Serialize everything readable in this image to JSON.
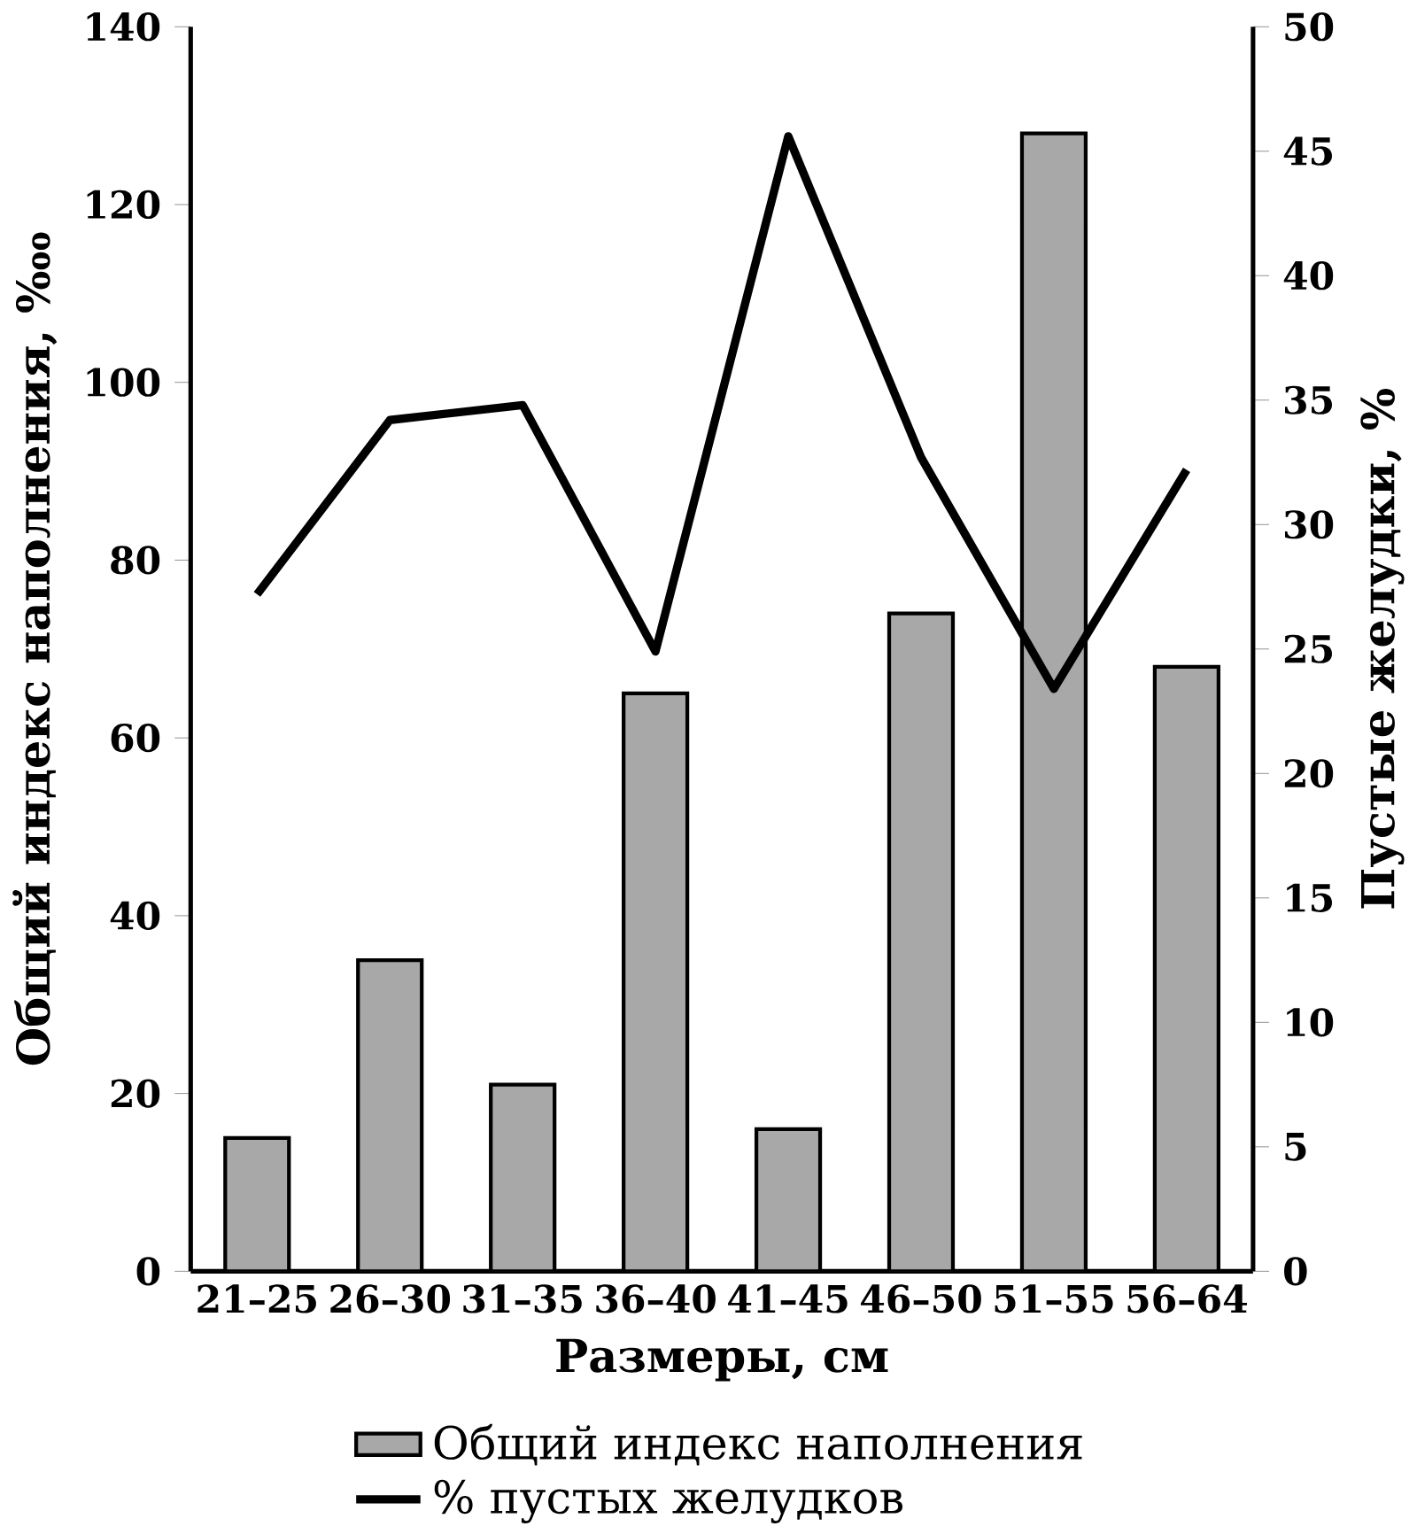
{
  "chart_data": {
    "type": "bar",
    "xlabel": "Размеры, см",
    "ylabel": "Общий индекс наполнения, ‱",
    "y2label": "Пустые желудки, %",
    "categories": [
      "21–25",
      "26–30",
      "31–35",
      "36–40",
      "41–45",
      "46–50",
      "51–55",
      "56–64"
    ],
    "series": [
      {
        "name": "Общий индекс наполнения",
        "color": "#a8a8a8",
        "values": [
          15,
          35,
          21,
          65,
          16,
          74,
          128,
          68
        ]
      },
      {
        "name": "% пустых желудков",
        "type": "line",
        "axis": "y2",
        "color": "#000000",
        "values": [
          27.2,
          34.2,
          34.8,
          24.9,
          45.6,
          32.7,
          23.4,
          32.2
        ]
      }
    ],
    "ylim": [
      0,
      140
    ],
    "yticks": [
      0,
      20,
      40,
      60,
      80,
      100,
      120,
      140
    ],
    "y2lim": [
      0,
      50
    ],
    "y2ticks": [
      0,
      5,
      10,
      15,
      20,
      25,
      30,
      35,
      40,
      45,
      50
    ],
    "legend": "bottom",
    "grid": false
  }
}
